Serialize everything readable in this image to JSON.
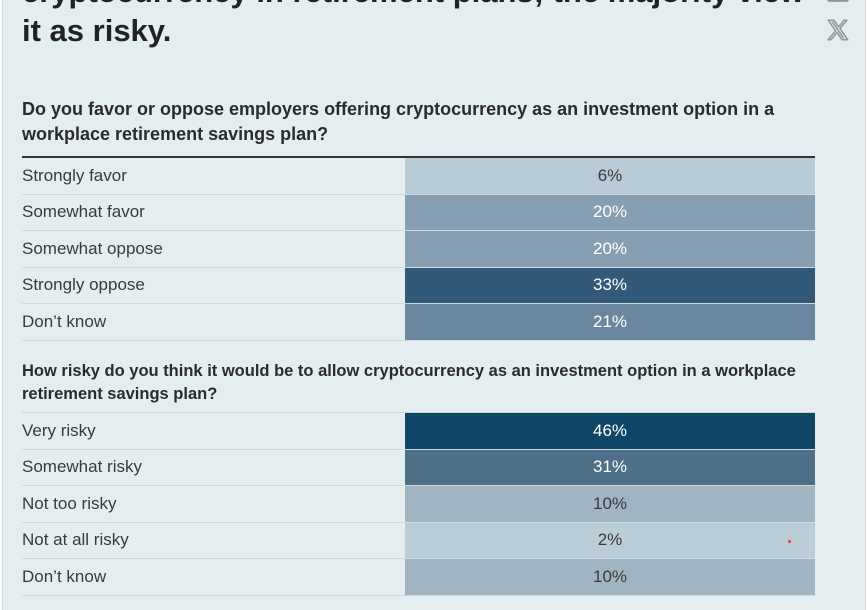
{
  "headline": "cryptocurrency in retirement plans; the majority view it as risky.",
  "social": {
    "linkedin_icon": "linkedin-icon",
    "x_icon": "x-twitter-icon",
    "icon_color": "#8f9598"
  },
  "sections": [
    {
      "question": "Do you favor or oppose employers offering cryptocurrency as an investment option in a workplace retirement savings plan?",
      "rows": [
        {
          "label": "Strongly favor",
          "value": "6%",
          "color": "#b9cbd6",
          "text_color": "#3a3a3a"
        },
        {
          "label": "Somewhat favor",
          "value": "20%",
          "color": "#879fb2",
          "text_color": "#ffffff"
        },
        {
          "label": "Somewhat oppose",
          "value": "20%",
          "color": "#879fb2",
          "text_color": "#ffffff"
        },
        {
          "label": "Strongly oppose",
          "value": "33%",
          "color": "#325a78",
          "text_color": "#ffffff"
        },
        {
          "label": "Don’t know",
          "value": "21%",
          "color": "#6b87a0",
          "text_color": "#ffffff"
        }
      ]
    },
    {
      "question": "How risky do you think it would be to allow cryptocurrency as an investment option in a workplace retirement savings plan?",
      "rows": [
        {
          "label": "Very risky",
          "value": "46%",
          "color": "#0f4666",
          "text_color": "#ffffff"
        },
        {
          "label": "Somewhat risky",
          "value": "31%",
          "color": "#4d7088",
          "text_color": "#ffffff"
        },
        {
          "label": "Not too risky",
          "value": "10%",
          "color": "#a0b4c2",
          "text_color": "#3a3a3a"
        },
        {
          "label": "Not at all risky",
          "value": "2%",
          "color": "#bbcdd7",
          "text_color": "#3a3a3a"
        },
        {
          "label": "Don’t know",
          "value": "10%",
          "color": "#a0b4c2",
          "text_color": "#3a3a3a"
        }
      ]
    }
  ]
}
